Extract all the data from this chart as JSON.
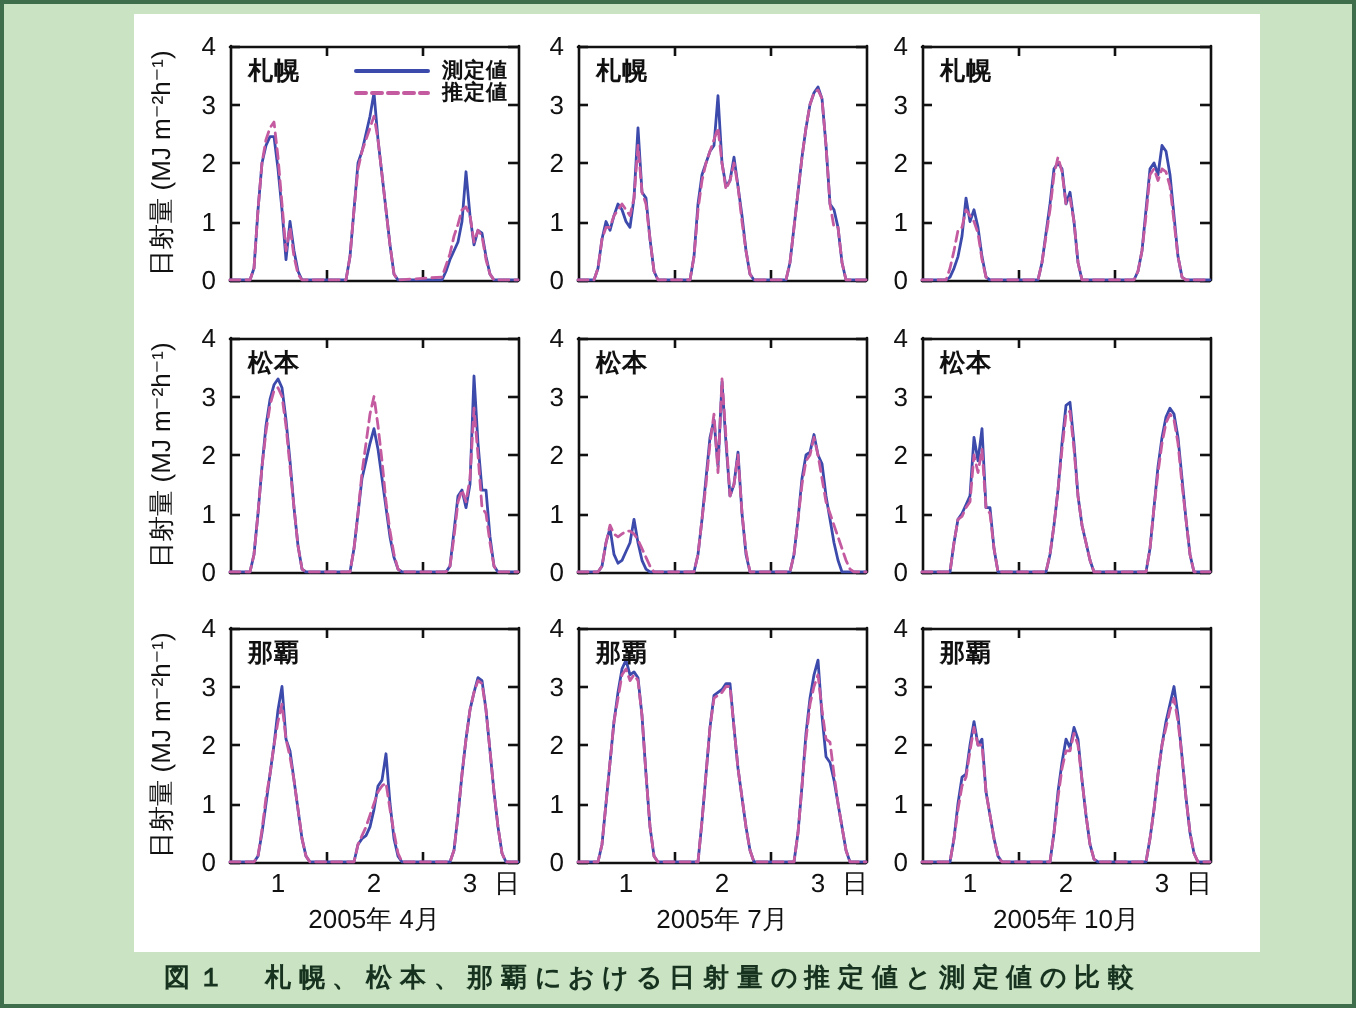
{
  "chart_data": [
    {
      "type": "line",
      "title": "札幌",
      "ylabel": "日射量 (MJ m⁻²h⁻¹)",
      "tick_labels": "y",
      "legend": "top right",
      "xlim": [
        "2005-04-01T00:00",
        "2005-04-04T00:00"
      ],
      "xticks": [
        {
          "value": "2005-04-02T00:00",
          "label": null
        },
        {
          "value": "2005-04-03T00:00",
          "label": null
        }
      ],
      "ylim": [
        0,
        4
      ],
      "yticks": [
        0,
        1,
        2,
        3,
        4
      ],
      "x": [
        "2005-04-01T00:00",
        "2005-04-01T05:00",
        "2005-04-01T06:00",
        "2005-04-01T07:00",
        "2005-04-01T08:00",
        "2005-04-01T09:00",
        "2005-04-01T10:00",
        "2005-04-01T11:00",
        "2005-04-01T12:00",
        "2005-04-01T13:00",
        "2005-04-01T14:00",
        "2005-04-01T15:00",
        "2005-04-01T16:00",
        "2005-04-01T17:00",
        "2005-04-01T18:00",
        "2005-04-02T05:00",
        "2005-04-02T06:00",
        "2005-04-02T07:00",
        "2005-04-02T08:00",
        "2005-04-02T09:00",
        "2005-04-02T10:00",
        "2005-04-02T11:00",
        "2005-04-02T12:00",
        "2005-04-02T13:00",
        "2005-04-02T14:00",
        "2005-04-02T15:00",
        "2005-04-02T16:00",
        "2005-04-02T17:00",
        "2005-04-02T18:00",
        "2005-04-03T05:00",
        "2005-04-03T06:00",
        "2005-04-03T07:00",
        "2005-04-03T08:00",
        "2005-04-03T09:00",
        "2005-04-03T10:00",
        "2005-04-03T11:00",
        "2005-04-03T12:00",
        "2005-04-03T13:00",
        "2005-04-03T14:00",
        "2005-04-03T15:00",
        "2005-04-03T16:00",
        "2005-04-03T17:00",
        "2005-04-03T18:00",
        "2005-04-04T00:00"
      ],
      "series": [
        {
          "name": "測定値",
          "color": "#3c4aac",
          "line_style": "solid",
          "values": [
            0,
            0,
            0.2,
            1.2,
            2.0,
            2.3,
            2.45,
            2.45,
            1.9,
            1.2,
            0.35,
            1.0,
            0.5,
            0.15,
            0,
            0,
            0.4,
            1.2,
            2.0,
            2.2,
            2.5,
            2.8,
            3.2,
            2.4,
            1.8,
            1.2,
            0.6,
            0.1,
            0,
            0,
            0.15,
            0.35,
            0.5,
            0.65,
            1.0,
            1.85,
            1.1,
            0.6,
            0.85,
            0.8,
            0.4,
            0.1,
            0,
            0
          ]
        },
        {
          "name": "推定値",
          "color": "#c45aa0",
          "line_style": "dashed",
          "values": [
            0,
            0,
            0.2,
            1.2,
            2.0,
            2.4,
            2.6,
            2.7,
            2.1,
            1.3,
            0.5,
            0.9,
            0.4,
            0.1,
            0,
            0,
            0.4,
            1.2,
            1.9,
            2.2,
            2.4,
            2.6,
            2.8,
            2.4,
            1.8,
            1.2,
            0.6,
            0.1,
            0,
            0.05,
            0.25,
            0.45,
            0.75,
            0.95,
            1.2,
            1.25,
            1.1,
            0.65,
            0.85,
            0.75,
            0.35,
            0.1,
            0,
            0
          ]
        }
      ]
    },
    {
      "type": "line",
      "title": "札幌",
      "tick_labels": "y",
      "xlim": [
        "2005-07-01T00:00",
        "2005-07-04T00:00"
      ],
      "xticks": [
        {
          "value": "2005-07-02T00:00",
          "label": null
        },
        {
          "value": "2005-07-03T00:00",
          "label": null
        }
      ],
      "ylim": [
        0,
        4
      ],
      "yticks": [
        0,
        1,
        2,
        3,
        4
      ],
      "x": [
        "2005-07-01T00:00",
        "2005-07-01T04:00",
        "2005-07-01T05:00",
        "2005-07-01T06:00",
        "2005-07-01T07:00",
        "2005-07-01T08:00",
        "2005-07-01T09:00",
        "2005-07-01T10:00",
        "2005-07-01T11:00",
        "2005-07-01T12:00",
        "2005-07-01T13:00",
        "2005-07-01T14:00",
        "2005-07-01T15:00",
        "2005-07-01T16:00",
        "2005-07-01T17:00",
        "2005-07-01T18:00",
        "2005-07-01T19:00",
        "2005-07-01T20:00",
        "2005-07-02T04:00",
        "2005-07-02T05:00",
        "2005-07-02T06:00",
        "2005-07-02T07:00",
        "2005-07-02T08:00",
        "2005-07-02T09:00",
        "2005-07-02T10:00",
        "2005-07-02T11:00",
        "2005-07-02T12:00",
        "2005-07-02T13:00",
        "2005-07-02T14:00",
        "2005-07-02T15:00",
        "2005-07-02T16:00",
        "2005-07-02T17:00",
        "2005-07-02T18:00",
        "2005-07-02T19:00",
        "2005-07-02T20:00",
        "2005-07-03T04:00",
        "2005-07-03T05:00",
        "2005-07-03T06:00",
        "2005-07-03T07:00",
        "2005-07-03T08:00",
        "2005-07-03T09:00",
        "2005-07-03T10:00",
        "2005-07-03T11:00",
        "2005-07-03T12:00",
        "2005-07-03T13:00",
        "2005-07-03T14:00",
        "2005-07-03T15:00",
        "2005-07-03T16:00",
        "2005-07-03T17:00",
        "2005-07-03T18:00",
        "2005-07-03T19:00",
        "2005-07-03T20:00",
        "2005-07-04T00:00"
      ],
      "series": [
        {
          "color": "#3c4aac",
          "line_style": "solid",
          "values": [
            0,
            0,
            0.2,
            0.7,
            1.0,
            0.85,
            1.1,
            1.3,
            1.2,
            1.0,
            0.9,
            1.4,
            2.6,
            1.5,
            1.4,
            0.7,
            0.15,
            0,
            0,
            0.4,
            1.3,
            1.8,
            2.0,
            2.2,
            2.3,
            3.15,
            2.0,
            1.6,
            1.7,
            2.1,
            1.6,
            1.1,
            0.5,
            0.1,
            0,
            0,
            0.3,
            0.9,
            1.5,
            2.1,
            2.6,
            3.0,
            3.2,
            3.3,
            3.1,
            2.3,
            1.3,
            1.2,
            0.9,
            0.3,
            0,
            0,
            0
          ]
        },
        {
          "color": "#c45aa0",
          "line_style": "dashed",
          "values": [
            0,
            0,
            0.2,
            0.7,
            0.9,
            0.9,
            1.1,
            1.2,
            1.3,
            1.2,
            1.1,
            1.4,
            2.3,
            1.5,
            1.3,
            0.7,
            0.15,
            0,
            0,
            0.4,
            1.2,
            1.7,
            2.0,
            2.2,
            2.4,
            2.6,
            2.0,
            1.55,
            1.7,
            2.0,
            1.6,
            1.0,
            0.5,
            0.1,
            0,
            0,
            0.3,
            0.9,
            1.5,
            2.1,
            2.6,
            3.0,
            3.2,
            3.25,
            3.1,
            2.3,
            1.3,
            0.9,
            0.9,
            0.3,
            0,
            0,
            0
          ]
        }
      ]
    },
    {
      "type": "line",
      "title": "札幌",
      "tick_labels": "y",
      "xlim": [
        "2005-10-01T00:00",
        "2005-10-04T00:00"
      ],
      "xticks": [
        {
          "value": "2005-10-02T00:00",
          "label": null
        },
        {
          "value": "2005-10-03T00:00",
          "label": null
        }
      ],
      "ylim": [
        0,
        4
      ],
      "yticks": [
        0,
        1,
        2,
        3,
        4
      ],
      "x": [
        "2005-10-01T00:00",
        "2005-10-01T06:00",
        "2005-10-01T07:00",
        "2005-10-01T08:00",
        "2005-10-01T09:00",
        "2005-10-01T10:00",
        "2005-10-01T11:00",
        "2005-10-01T12:00",
        "2005-10-01T13:00",
        "2005-10-01T14:00",
        "2005-10-01T15:00",
        "2005-10-01T16:00",
        "2005-10-01T17:00",
        "2005-10-02T05:00",
        "2005-10-02T06:00",
        "2005-10-02T07:00",
        "2005-10-02T08:00",
        "2005-10-02T09:00",
        "2005-10-02T10:00",
        "2005-10-02T11:00",
        "2005-10-02T12:00",
        "2005-10-02T13:00",
        "2005-10-02T14:00",
        "2005-10-02T15:00",
        "2005-10-02T16:00",
        "2005-10-03T05:00",
        "2005-10-03T06:00",
        "2005-10-03T07:00",
        "2005-10-03T08:00",
        "2005-10-03T09:00",
        "2005-10-03T10:00",
        "2005-10-03T11:00",
        "2005-10-03T12:00",
        "2005-10-03T13:00",
        "2005-10-03T14:00",
        "2005-10-03T15:00",
        "2005-10-03T16:00",
        "2005-10-03T17:00",
        "2005-10-03T18:00",
        "2005-10-04T00:00"
      ],
      "series": [
        {
          "color": "#3c4aac",
          "line_style": "solid",
          "values": [
            0,
            0,
            0.05,
            0.2,
            0.4,
            0.75,
            1.4,
            1.0,
            1.2,
            0.9,
            0.4,
            0.05,
            0,
            0,
            0.3,
            0.8,
            1.3,
            1.9,
            2.0,
            1.9,
            1.3,
            1.5,
            1.0,
            0.3,
            0,
            0,
            0.15,
            0.5,
            1.2,
            1.9,
            2.0,
            1.8,
            2.3,
            2.2,
            1.8,
            1.1,
            0.4,
            0.05,
            0,
            0
          ]
        },
        {
          "color": "#c45aa0",
          "line_style": "dashed",
          "values": [
            0,
            0,
            0.2,
            0.5,
            0.85,
            0.9,
            1.2,
            1.1,
            1.0,
            0.8,
            0.35,
            0.05,
            0,
            0,
            0.3,
            0.75,
            1.2,
            1.8,
            2.1,
            1.85,
            1.3,
            1.4,
            1.0,
            0.3,
            0,
            0,
            0.15,
            0.5,
            1.1,
            1.8,
            1.9,
            1.7,
            1.9,
            1.85,
            1.6,
            1.0,
            0.4,
            0.05,
            0,
            0
          ]
        }
      ]
    },
    {
      "type": "line",
      "title": "松本",
      "ylabel": "日射量 (MJ m⁻²h⁻¹)",
      "tick_labels": "y",
      "xlim": [
        "2005-04-01T00:00",
        "2005-04-04T00:00"
      ],
      "xticks": [
        {
          "value": "2005-04-02T00:00",
          "label": null
        },
        {
          "value": "2005-04-03T00:00",
          "label": null
        }
      ],
      "ylim": [
        0,
        4
      ],
      "yticks": [
        0,
        1,
        2,
        3,
        4
      ],
      "x": [
        "2005-04-01T00:00",
        "2005-04-01T05:00",
        "2005-04-01T06:00",
        "2005-04-01T07:00",
        "2005-04-01T08:00",
        "2005-04-01T09:00",
        "2005-04-01T10:00",
        "2005-04-01T11:00",
        "2005-04-01T12:00",
        "2005-04-01T13:00",
        "2005-04-01T14:00",
        "2005-04-01T15:00",
        "2005-04-01T16:00",
        "2005-04-01T17:00",
        "2005-04-01T18:00",
        "2005-04-01T19:00",
        "2005-04-02T06:00",
        "2005-04-02T07:00",
        "2005-04-02T08:00",
        "2005-04-02T09:00",
        "2005-04-02T10:00",
        "2005-04-02T11:00",
        "2005-04-02T12:00",
        "2005-04-02T13:00",
        "2005-04-02T14:00",
        "2005-04-02T15:00",
        "2005-04-02T16:00",
        "2005-04-02T17:00",
        "2005-04-02T18:00",
        "2005-04-02T19:00",
        "2005-04-03T06:00",
        "2005-04-03T07:00",
        "2005-04-03T08:00",
        "2005-04-03T09:00",
        "2005-04-03T10:00",
        "2005-04-03T11:00",
        "2005-04-03T12:00",
        "2005-04-03T13:00",
        "2005-04-03T14:00",
        "2005-04-03T15:00",
        "2005-04-03T16:00",
        "2005-04-03T17:00",
        "2005-04-03T18:00",
        "2005-04-03T19:00",
        "2005-04-04T00:00"
      ],
      "series": [
        {
          "color": "#3c4aac",
          "line_style": "solid",
          "values": [
            0,
            0,
            0.3,
            1.0,
            1.8,
            2.5,
            2.95,
            3.2,
            3.3,
            3.15,
            2.6,
            1.9,
            1.1,
            0.45,
            0.05,
            0,
            0,
            0.4,
            1.0,
            1.6,
            1.9,
            2.2,
            2.45,
            2.1,
            1.6,
            1.1,
            0.6,
            0.25,
            0.05,
            0,
            0,
            0.1,
            0.7,
            1.3,
            1.4,
            1.1,
            1.5,
            3.35,
            2.2,
            1.4,
            1.4,
            0.6,
            0.1,
            0,
            0
          ]
        },
        {
          "color": "#c45aa0",
          "line_style": "dashed",
          "values": [
            0,
            0,
            0.3,
            1.0,
            1.8,
            2.4,
            2.85,
            3.1,
            3.15,
            3.0,
            2.5,
            1.8,
            1.1,
            0.45,
            0.05,
            0,
            0,
            0.4,
            1.0,
            1.7,
            2.2,
            2.7,
            3.0,
            2.5,
            1.9,
            1.2,
            0.7,
            0.3,
            0.05,
            0,
            0,
            0.1,
            0.6,
            1.2,
            1.4,
            1.2,
            1.6,
            2.8,
            2.0,
            1.1,
            1.0,
            0.5,
            0.1,
            0,
            0
          ]
        }
      ]
    },
    {
      "type": "line",
      "title": "松本",
      "tick_labels": "y",
      "xlim": [
        "2005-07-01T00:00",
        "2005-07-04T00:00"
      ],
      "xticks": [
        {
          "value": "2005-07-02T00:00",
          "label": null
        },
        {
          "value": "2005-07-03T00:00",
          "label": null
        }
      ],
      "ylim": [
        0,
        4
      ],
      "yticks": [
        0,
        1,
        2,
        3,
        4
      ],
      "x": [
        "2005-07-01T00:00",
        "2005-07-01T05:00",
        "2005-07-01T06:00",
        "2005-07-01T07:00",
        "2005-07-01T08:00",
        "2005-07-01T09:00",
        "2005-07-01T10:00",
        "2005-07-01T11:00",
        "2005-07-01T12:00",
        "2005-07-01T13:00",
        "2005-07-01T14:00",
        "2005-07-01T15:00",
        "2005-07-01T16:00",
        "2005-07-01T17:00",
        "2005-07-01T18:00",
        "2005-07-01T19:00",
        "2005-07-02T05:00",
        "2005-07-02T06:00",
        "2005-07-02T07:00",
        "2005-07-02T08:00",
        "2005-07-02T09:00",
        "2005-07-02T10:00",
        "2005-07-02T11:00",
        "2005-07-02T12:00",
        "2005-07-02T13:00",
        "2005-07-02T14:00",
        "2005-07-02T15:00",
        "2005-07-02T16:00",
        "2005-07-02T17:00",
        "2005-07-02T18:00",
        "2005-07-02T19:00",
        "2005-07-03T05:00",
        "2005-07-03T06:00",
        "2005-07-03T07:00",
        "2005-07-03T08:00",
        "2005-07-03T09:00",
        "2005-07-03T10:00",
        "2005-07-03T11:00",
        "2005-07-03T12:00",
        "2005-07-03T13:00",
        "2005-07-03T14:00",
        "2005-07-03T15:00",
        "2005-07-03T16:00",
        "2005-07-03T17:00",
        "2005-07-03T18:00",
        "2005-07-03T19:00",
        "2005-07-03T20:00",
        "2005-07-03T21:00",
        "2005-07-04T00:00"
      ],
      "series": [
        {
          "color": "#3c4aac",
          "line_style": "solid",
          "values": [
            0,
            0,
            0.1,
            0.5,
            0.75,
            0.3,
            0.15,
            0.2,
            0.35,
            0.5,
            0.9,
            0.5,
            0.2,
            0.05,
            0,
            0,
            0,
            0.3,
            0.9,
            1.6,
            2.3,
            2.6,
            1.8,
            3.25,
            2.2,
            1.3,
            1.5,
            2.05,
            1.0,
            0.3,
            0,
            0,
            0.3,
            0.9,
            1.6,
            2.0,
            2.05,
            2.35,
            2.0,
            1.85,
            1.3,
            0.9,
            0.5,
            0.2,
            0,
            0,
            0,
            0,
            0
          ]
        },
        {
          "color": "#c45aa0",
          "line_style": "dashed",
          "values": [
            0,
            0,
            0.1,
            0.5,
            0.8,
            0.65,
            0.6,
            0.65,
            0.7,
            0.7,
            0.65,
            0.55,
            0.4,
            0.25,
            0.1,
            0,
            0,
            0.3,
            0.9,
            1.5,
            2.2,
            2.7,
            1.7,
            3.3,
            2.3,
            1.3,
            1.5,
            2.0,
            1.0,
            0.35,
            0,
            0,
            0.3,
            0.9,
            1.5,
            1.9,
            2.0,
            2.3,
            2.0,
            1.6,
            1.2,
            1.0,
            0.8,
            0.6,
            0.4,
            0.2,
            0.05,
            0,
            0
          ]
        }
      ]
    },
    {
      "type": "line",
      "title": "松本",
      "tick_labels": "y",
      "xlim": [
        "2005-10-01T00:00",
        "2005-10-04T00:00"
      ],
      "xticks": [
        {
          "value": "2005-10-02T00:00",
          "label": null
        },
        {
          "value": "2005-10-03T00:00",
          "label": null
        }
      ],
      "ylim": [
        0,
        4
      ],
      "yticks": [
        0,
        1,
        2,
        3,
        4
      ],
      "x": [
        "2005-10-01T00:00",
        "2005-10-01T07:00",
        "2005-10-01T08:00",
        "2005-10-01T09:00",
        "2005-10-01T10:00",
        "2005-10-01T11:00",
        "2005-10-01T12:00",
        "2005-10-01T13:00",
        "2005-10-01T14:00",
        "2005-10-01T15:00",
        "2005-10-01T16:00",
        "2005-10-01T17:00",
        "2005-10-01T18:00",
        "2005-10-01T19:00",
        "2005-10-02T07:00",
        "2005-10-02T08:00",
        "2005-10-02T09:00",
        "2005-10-02T10:00",
        "2005-10-02T11:00",
        "2005-10-02T12:00",
        "2005-10-02T13:00",
        "2005-10-02T14:00",
        "2005-10-02T15:00",
        "2005-10-02T16:00",
        "2005-10-02T17:00",
        "2005-10-02T18:00",
        "2005-10-02T19:00",
        "2005-10-03T08:00",
        "2005-10-03T09:00",
        "2005-10-03T10:00",
        "2005-10-03T11:00",
        "2005-10-03T12:00",
        "2005-10-03T13:00",
        "2005-10-03T14:00",
        "2005-10-03T15:00",
        "2005-10-03T16:00",
        "2005-10-03T17:00",
        "2005-10-03T18:00",
        "2005-10-03T19:00",
        "2005-10-03T20:00",
        "2005-10-04T00:00"
      ],
      "series": [
        {
          "color": "#3c4aac",
          "line_style": "solid",
          "values": [
            0,
            0,
            0.5,
            0.9,
            1.0,
            1.15,
            1.3,
            2.3,
            1.9,
            2.45,
            1.1,
            1.1,
            0.4,
            0,
            0,
            0.3,
            0.8,
            1.4,
            2.2,
            2.85,
            2.9,
            2.2,
            1.3,
            0.8,
            0.5,
            0.2,
            0,
            0,
            0.4,
            1.1,
            1.8,
            2.3,
            2.65,
            2.8,
            2.7,
            2.3,
            1.6,
            0.9,
            0.3,
            0,
            0
          ]
        },
        {
          "color": "#c45aa0",
          "line_style": "dashed",
          "values": [
            0,
            0,
            0.5,
            0.9,
            0.95,
            1.1,
            1.2,
            2.0,
            1.7,
            2.1,
            1.1,
            1.0,
            0.4,
            0,
            0,
            0.3,
            0.8,
            1.4,
            2.1,
            2.7,
            2.75,
            2.1,
            1.3,
            0.8,
            0.5,
            0.2,
            0,
            0,
            0.4,
            1.1,
            1.7,
            2.2,
            2.55,
            2.7,
            2.6,
            2.2,
            1.5,
            0.9,
            0.3,
            0,
            0
          ]
        }
      ]
    },
    {
      "type": "line",
      "title": "那覇",
      "ylabel": "日射量 (MJ m⁻²h⁻¹)",
      "xlabel": "2005年 4月",
      "annotations": [
        "日"
      ],
      "xlim": [
        "2005-04-01T00:00",
        "2005-04-04T00:00"
      ],
      "xticks": [
        {
          "value": "2005-04-01T12:00",
          "label": "1"
        },
        {
          "value": "2005-04-02T00:00",
          "label": null
        },
        {
          "value": "2005-04-02T12:00",
          "label": "2"
        },
        {
          "value": "2005-04-03T00:00",
          "label": null
        },
        {
          "value": "2005-04-03T12:00",
          "label": "3"
        }
      ],
      "ylim": [
        0,
        4
      ],
      "yticks": [
        0,
        1,
        2,
        3,
        4
      ],
      "x": [
        "2005-04-01T00:00",
        "2005-04-01T06:00",
        "2005-04-01T07:00",
        "2005-04-01T08:00",
        "2005-04-01T09:00",
        "2005-04-01T10:00",
        "2005-04-01T11:00",
        "2005-04-01T12:00",
        "2005-04-01T13:00",
        "2005-04-01T14:00",
        "2005-04-01T15:00",
        "2005-04-01T16:00",
        "2005-04-01T17:00",
        "2005-04-01T18:00",
        "2005-04-01T19:00",
        "2005-04-01T20:00",
        "2005-04-02T07:00",
        "2005-04-02T08:00",
        "2005-04-02T09:00",
        "2005-04-02T10:00",
        "2005-04-02T11:00",
        "2005-04-02T12:00",
        "2005-04-02T13:00",
        "2005-04-02T14:00",
        "2005-04-02T15:00",
        "2005-04-02T16:00",
        "2005-04-02T17:00",
        "2005-04-02T18:00",
        "2005-04-02T19:00",
        "2005-04-03T07:00",
        "2005-04-03T08:00",
        "2005-04-03T09:00",
        "2005-04-03T10:00",
        "2005-04-03T11:00",
        "2005-04-03T12:00",
        "2005-04-03T13:00",
        "2005-04-03T14:00",
        "2005-04-03T15:00",
        "2005-04-03T16:00",
        "2005-04-03T17:00",
        "2005-04-03T18:00",
        "2005-04-03T19:00",
        "2005-04-03T20:00",
        "2005-04-03T21:00",
        "2005-04-04T00:00"
      ],
      "series": [
        {
          "color": "#3c4aac",
          "line_style": "solid",
          "values": [
            0,
            0,
            0.1,
            0.5,
            1.0,
            1.5,
            2.0,
            2.6,
            3.0,
            2.1,
            1.9,
            1.4,
            0.9,
            0.4,
            0.1,
            0,
            0,
            0.3,
            0.4,
            0.45,
            0.6,
            0.9,
            1.3,
            1.4,
            1.85,
            1.0,
            0.4,
            0.1,
            0,
            0,
            0.2,
            0.8,
            1.5,
            2.1,
            2.6,
            2.9,
            3.15,
            3.1,
            2.6,
            1.9,
            1.2,
            0.6,
            0.15,
            0,
            0
          ]
        },
        {
          "color": "#c45aa0",
          "line_style": "dashed",
          "values": [
            0,
            0,
            0.1,
            0.55,
            1.1,
            1.5,
            2.0,
            2.4,
            2.7,
            2.1,
            1.8,
            1.4,
            0.9,
            0.4,
            0.1,
            0,
            0,
            0.3,
            0.45,
            0.6,
            0.8,
            1.0,
            1.2,
            1.3,
            1.35,
            0.9,
            0.5,
            0.15,
            0,
            0,
            0.2,
            0.8,
            1.5,
            2.1,
            2.6,
            2.9,
            3.1,
            3.05,
            2.6,
            1.9,
            1.2,
            0.6,
            0.15,
            0,
            0
          ]
        }
      ]
    },
    {
      "type": "line",
      "title": "那覇",
      "xlabel": "2005年 7月",
      "annotations": [
        "日"
      ],
      "xlim": [
        "2005-07-01T00:00",
        "2005-07-04T00:00"
      ],
      "xticks": [
        {
          "value": "2005-07-01T12:00",
          "label": "1"
        },
        {
          "value": "2005-07-02T00:00",
          "label": null
        },
        {
          "value": "2005-07-02T12:00",
          "label": "2"
        },
        {
          "value": "2005-07-03T00:00",
          "label": null
        },
        {
          "value": "2005-07-03T12:00",
          "label": "3"
        }
      ],
      "ylim": [
        0,
        4
      ],
      "yticks": [
        0,
        1,
        2,
        3,
        4
      ],
      "x": [
        "2005-07-01T00:00",
        "2005-07-01T05:00",
        "2005-07-01T06:00",
        "2005-07-01T07:00",
        "2005-07-01T08:00",
        "2005-07-01T09:00",
        "2005-07-01T10:00",
        "2005-07-01T11:00",
        "2005-07-01T12:00",
        "2005-07-01T13:00",
        "2005-07-01T14:00",
        "2005-07-01T15:00",
        "2005-07-01T16:00",
        "2005-07-01T17:00",
        "2005-07-01T18:00",
        "2005-07-01T19:00",
        "2005-07-01T20:00",
        "2005-07-02T06:00",
        "2005-07-02T07:00",
        "2005-07-02T08:00",
        "2005-07-02T09:00",
        "2005-07-02T10:00",
        "2005-07-02T11:00",
        "2005-07-02T12:00",
        "2005-07-02T13:00",
        "2005-07-02T14:00",
        "2005-07-02T15:00",
        "2005-07-02T16:00",
        "2005-07-02T17:00",
        "2005-07-02T18:00",
        "2005-07-02T19:00",
        "2005-07-02T20:00",
        "2005-07-03T06:00",
        "2005-07-03T07:00",
        "2005-07-03T08:00",
        "2005-07-03T09:00",
        "2005-07-03T10:00",
        "2005-07-03T11:00",
        "2005-07-03T12:00",
        "2005-07-03T13:00",
        "2005-07-03T14:00",
        "2005-07-03T15:00",
        "2005-07-03T16:00",
        "2005-07-03T17:00",
        "2005-07-03T18:00",
        "2005-07-03T19:00",
        "2005-07-03T20:00",
        "2005-07-04T00:00"
      ],
      "series": [
        {
          "color": "#3c4aac",
          "line_style": "solid",
          "values": [
            0,
            0,
            0.3,
            1.0,
            1.7,
            2.4,
            2.9,
            3.3,
            3.45,
            3.2,
            3.25,
            3.15,
            2.5,
            1.5,
            0.6,
            0.1,
            0,
            0,
            0.7,
            1.5,
            2.3,
            2.85,
            2.9,
            2.95,
            3.05,
            3.05,
            2.3,
            1.6,
            1.1,
            0.6,
            0.2,
            0,
            0,
            0.5,
            1.3,
            2.2,
            2.8,
            3.2,
            3.45,
            2.5,
            1.8,
            1.7,
            1.4,
            1.0,
            0.6,
            0.2,
            0,
            0
          ]
        },
        {
          "color": "#c45aa0",
          "line_style": "dashed",
          "values": [
            0,
            0,
            0.3,
            1.0,
            1.7,
            2.4,
            2.8,
            3.2,
            3.3,
            3.1,
            3.2,
            3.1,
            2.5,
            1.5,
            0.6,
            0.1,
            0,
            0,
            0.7,
            1.5,
            2.3,
            2.8,
            2.85,
            2.9,
            3.0,
            3.0,
            2.3,
            1.6,
            1.1,
            0.6,
            0.2,
            0,
            0,
            0.5,
            1.3,
            2.1,
            2.7,
            3.0,
            3.2,
            2.6,
            2.1,
            2.05,
            1.5,
            1.0,
            0.6,
            0.2,
            0,
            0
          ]
        }
      ]
    },
    {
      "type": "line",
      "title": "那覇",
      "xlabel": "2005年 10月",
      "annotations": [
        "日"
      ],
      "xlim": [
        "2005-10-01T00:00",
        "2005-10-04T00:00"
      ],
      "xticks": [
        {
          "value": "2005-10-01T12:00",
          "label": "1"
        },
        {
          "value": "2005-10-02T00:00",
          "label": null
        },
        {
          "value": "2005-10-02T12:00",
          "label": "2"
        },
        {
          "value": "2005-10-03T00:00",
          "label": null
        },
        {
          "value": "2005-10-03T12:00",
          "label": "3"
        }
      ],
      "ylim": [
        0,
        4
      ],
      "yticks": [
        0,
        1,
        2,
        3,
        4
      ],
      "x": [
        "2005-10-01T00:00",
        "2005-10-01T07:00",
        "2005-10-01T08:00",
        "2005-10-01T09:00",
        "2005-10-01T10:00",
        "2005-10-01T11:00",
        "2005-10-01T12:00",
        "2005-10-01T13:00",
        "2005-10-01T14:00",
        "2005-10-01T15:00",
        "2005-10-01T16:00",
        "2005-10-01T17:00",
        "2005-10-01T18:00",
        "2005-10-01T19:00",
        "2005-10-01T20:00",
        "2005-10-02T08:00",
        "2005-10-02T09:00",
        "2005-10-02T10:00",
        "2005-10-02T11:00",
        "2005-10-02T12:00",
        "2005-10-02T13:00",
        "2005-10-02T14:00",
        "2005-10-02T15:00",
        "2005-10-02T16:00",
        "2005-10-02T17:00",
        "2005-10-02T18:00",
        "2005-10-02T19:00",
        "2005-10-02T20:00",
        "2005-10-03T08:00",
        "2005-10-03T09:00",
        "2005-10-03T10:00",
        "2005-10-03T11:00",
        "2005-10-03T12:00",
        "2005-10-03T13:00",
        "2005-10-03T14:00",
        "2005-10-03T15:00",
        "2005-10-03T16:00",
        "2005-10-03T17:00",
        "2005-10-03T18:00",
        "2005-10-03T19:00",
        "2005-10-03T20:00",
        "2005-10-03T21:00",
        "2005-10-04T00:00"
      ],
      "series": [
        {
          "color": "#3c4aac",
          "line_style": "solid",
          "values": [
            0,
            0,
            0.4,
            1.0,
            1.45,
            1.5,
            2.0,
            2.4,
            2.0,
            2.1,
            1.2,
            0.8,
            0.4,
            0.1,
            0,
            0,
            0.5,
            1.2,
            1.7,
            2.1,
            1.95,
            2.3,
            2.1,
            1.4,
            0.8,
            0.3,
            0.05,
            0,
            0,
            0.4,
            0.9,
            1.5,
            2.0,
            2.4,
            2.7,
            3.0,
            2.5,
            1.8,
            1.1,
            0.5,
            0.15,
            0,
            0
          ]
        },
        {
          "color": "#c45aa0",
          "line_style": "dashed",
          "values": [
            0,
            0,
            0.4,
            0.9,
            1.3,
            1.45,
            1.9,
            2.3,
            2.0,
            2.0,
            1.2,
            0.8,
            0.4,
            0.1,
            0,
            0,
            0.5,
            1.1,
            1.6,
            1.9,
            1.9,
            2.2,
            2.0,
            1.4,
            0.8,
            0.3,
            0.05,
            0,
            0,
            0.4,
            0.9,
            1.5,
            2.0,
            2.3,
            2.6,
            2.8,
            2.4,
            1.8,
            1.1,
            0.5,
            0.15,
            0,
            0
          ]
        }
      ]
    },
    {
      "type": "other",
      "title": "図１　札幌、松本、那覇における日射量の推定値と測定値の比較"
    }
  ]
}
